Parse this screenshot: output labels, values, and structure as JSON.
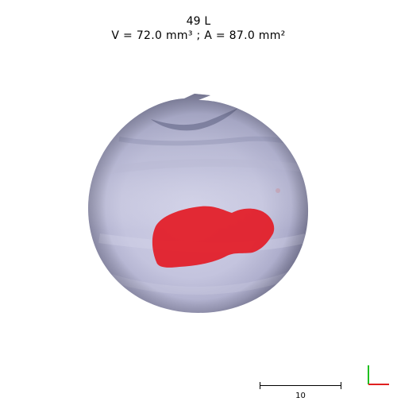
{
  "header": {
    "title": "49 L",
    "measurement": "V = 72.0 mm³ ; A = 87.0 mm²"
  },
  "scale_bar": {
    "label": "10"
  },
  "colors": {
    "lesion": "#e3202a",
    "axis_x": "#e02020",
    "axis_y": "#20c020",
    "background": "#ffffff"
  }
}
